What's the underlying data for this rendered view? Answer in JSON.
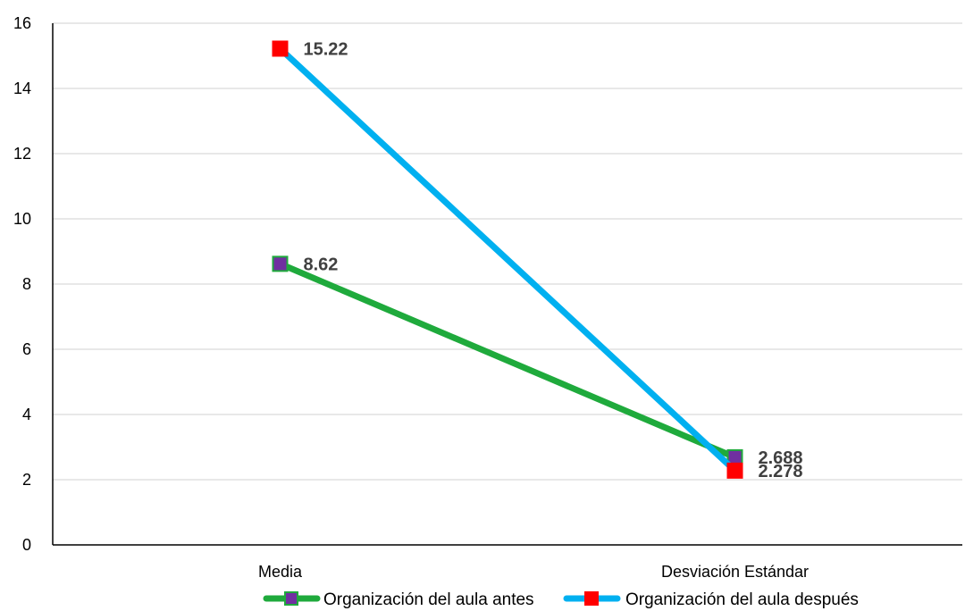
{
  "chart_data": {
    "type": "line",
    "categories": [
      "Media",
      "Desviación Estándar"
    ],
    "ylim": [
      0,
      16
    ],
    "yticks": [
      0,
      2,
      4,
      6,
      8,
      10,
      12,
      14,
      16
    ],
    "grid": true,
    "legend_position": "bottom",
    "series": [
      {
        "name": "Organización del aula antes",
        "values": [
          8.62,
          2.688
        ],
        "labels": [
          "8.62",
          "2.688"
        ],
        "line_color": "#1faa3c",
        "marker_color": "#7030a0",
        "marker_border": "#1faa3c"
      },
      {
        "name": "Organización del aula después",
        "values": [
          15.22,
          2.278
        ],
        "labels": [
          "15.22",
          "2.278"
        ],
        "line_color": "#00b0f0",
        "marker_color": "#ff0000",
        "marker_border": "#ff0000"
      }
    ]
  }
}
